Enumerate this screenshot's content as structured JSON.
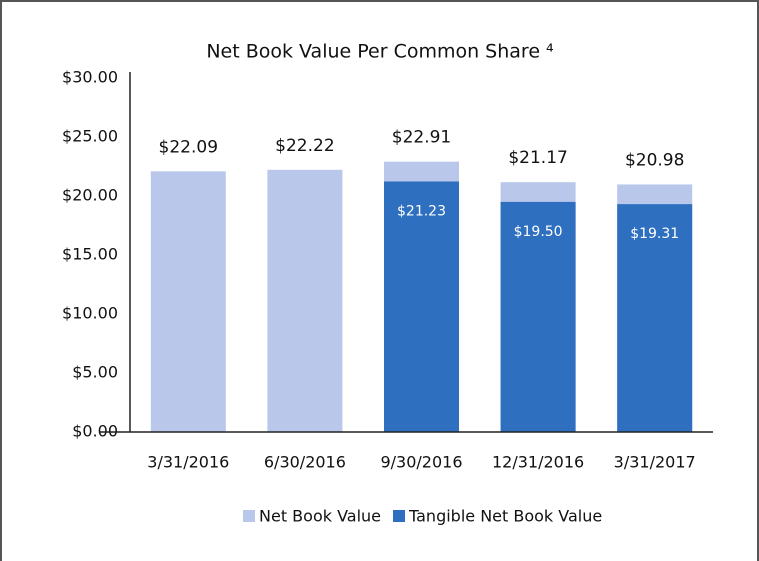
{
  "chart_data": {
    "type": "bar",
    "title": "Net Book Value Per Common Share ⁴",
    "categories": [
      "3/31/2016",
      "6/30/2016",
      "9/30/2016",
      "12/31/2016",
      "3/31/2017"
    ],
    "series": [
      {
        "name": "Net Book Value",
        "color": "#b9c7ea",
        "values": [
          22.09,
          22.22,
          22.91,
          21.17,
          20.98
        ],
        "value_labels": [
          "$22.09",
          "$22.22",
          "$22.91",
          "$21.17",
          "$20.98"
        ]
      },
      {
        "name": "Tangible Net Book Value",
        "color": "#2e6fc0",
        "values": [
          null,
          null,
          21.23,
          19.5,
          19.31
        ],
        "value_labels": [
          null,
          null,
          "$21.23",
          "$19.50",
          "$19.31"
        ]
      }
    ],
    "overlap": true,
    "ylim": [
      0,
      30
    ],
    "yticks": [
      {
        "value": 0,
        "label": "$0.00"
      },
      {
        "value": 5,
        "label": "$5.00"
      },
      {
        "value": 10,
        "label": "$10.00"
      },
      {
        "value": 15,
        "label": "$15.00"
      },
      {
        "value": 20,
        "label": "$20.00"
      },
      {
        "value": 25,
        "label": "$25.00"
      },
      {
        "value": 30,
        "label": "$30.00"
      }
    ],
    "grid": false,
    "legend": "bottom"
  }
}
